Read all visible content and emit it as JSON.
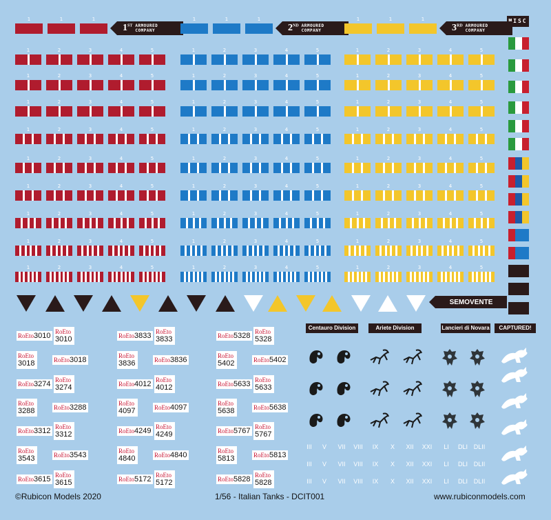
{
  "colors": {
    "background": "#a9cdea",
    "company_red": "#b01c2e",
    "company_blue": "#1e7ac7",
    "company_yellow": "#f3c62b",
    "dark": "#2a1a1a",
    "flag_green": "#2a9a3e",
    "flag_white": "#ffffff",
    "flag_red": "#c8202e",
    "savoy_blue": "#1e5aa8"
  },
  "companies": [
    {
      "ordinal": "1",
      "suffix": "ST",
      "line1": "ARMOURED",
      "line2": "COMPANY"
    },
    {
      "ordinal": "2",
      "suffix": "ND",
      "line1": "ARMOURED",
      "line2": "COMPANY"
    },
    {
      "ordinal": "3",
      "suffix": "RD",
      "line1": "ARMOURED",
      "line2": "COMPANY"
    }
  ],
  "row_numbers": [
    "1",
    "2",
    "3",
    "4",
    "5"
  ],
  "misc_label": "MISC",
  "semovente_label": "SEMOVENTE",
  "plates": {
    "re_label": "RoEto",
    "column1": [
      "3010",
      "3018",
      "3274",
      "3288",
      "3312",
      "3543",
      "3615"
    ],
    "column2": [
      "3833",
      "3836",
      "4012",
      "4097",
      "4249",
      "4840",
      "5172"
    ],
    "column3": [
      "5328",
      "5402",
      "5633",
      "5638",
      "5767",
      "5813",
      "5828"
    ]
  },
  "divisions": {
    "centauro": "Centauro Division",
    "ariete": "Ariete Division",
    "lancieri": "Lancieri di Novara",
    "captured": "CAPTURED!"
  },
  "numerals_row1": [
    "III",
    "V",
    "VII",
    "VIII",
    "IX",
    "X",
    "XII",
    "XXI",
    "LI",
    "DLI",
    "DLII"
  ],
  "footer": {
    "left": "©Rubicon Models 2020",
    "center": "1/56 - Italian Tanks - DCIT001",
    "right": "www.rubiconmodels.com"
  }
}
